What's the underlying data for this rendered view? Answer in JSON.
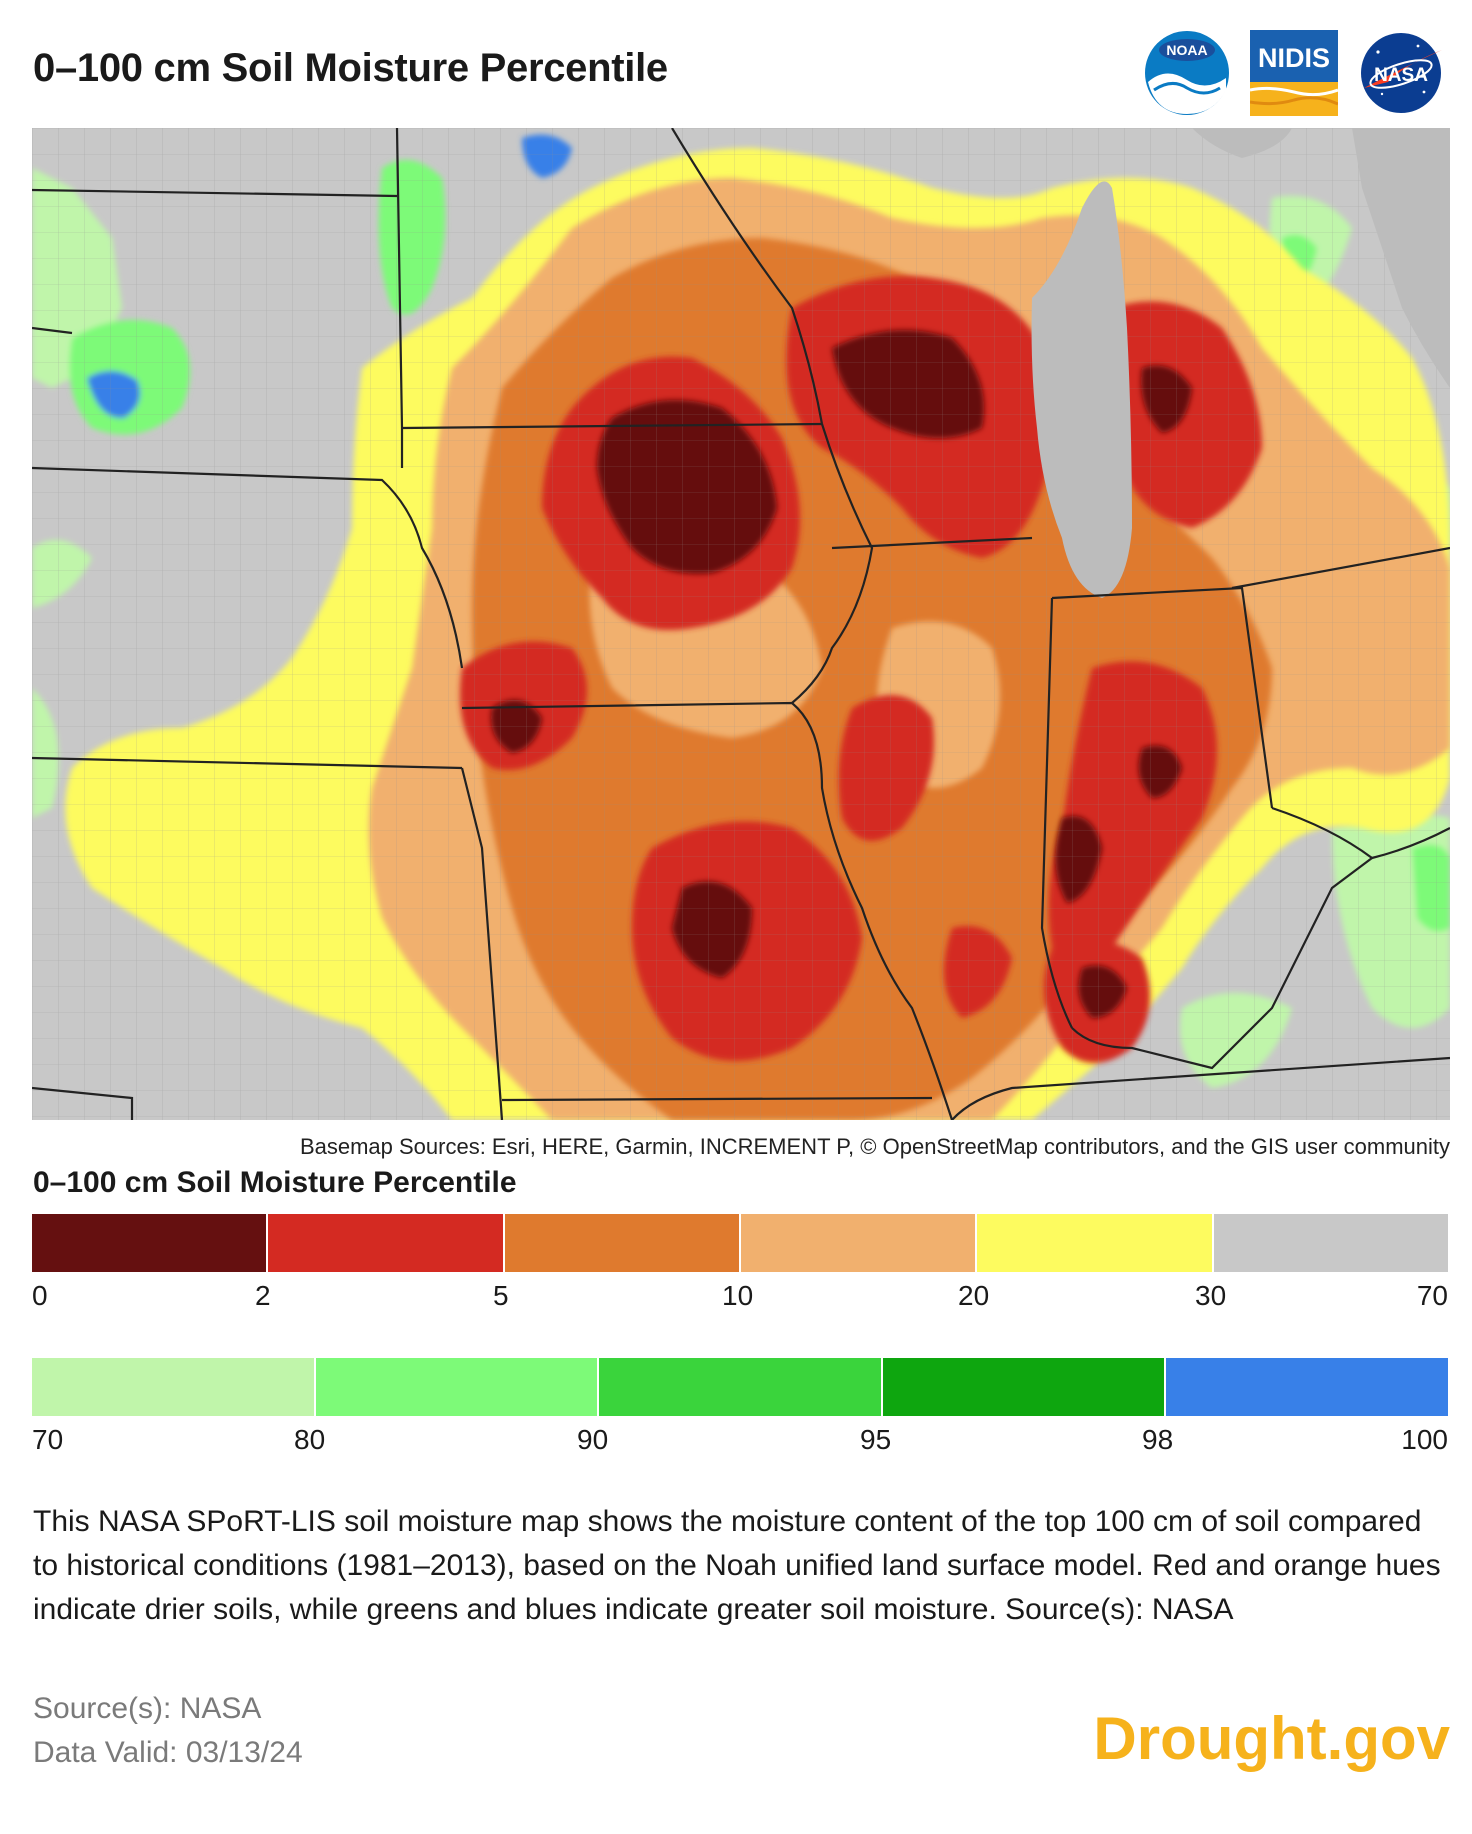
{
  "header": {
    "title": "0–100 cm Soil Moisture Percentile"
  },
  "logos": {
    "noaa": "NOAA",
    "nidis": "NIDIS",
    "nasa": "NASA"
  },
  "map": {
    "palette": {
      "extreme_dry": "#651010",
      "very_dry": "#d42a22",
      "dry": "#df7a2e",
      "moderately_dry": "#f1b06e",
      "slightly_dry": "#fdfb5f",
      "normal": "#c8c8c8",
      "moist": "#c0f5aa",
      "wet": "#7dfa78",
      "very_wet": "#3ad43c",
      "wettest": "#0ea60f",
      "saturated": "#3880e8",
      "water": "#bcbcbc",
      "borders": "#222222"
    },
    "basemap_credit": "Basemap Sources: Esri, HERE, Garmin, INCREMENT P, © OpenStreetMap contributors, and the GIS user community"
  },
  "legend": {
    "title": "0–100 cm Soil Moisture Percentile",
    "scale1": {
      "colors": [
        "#651010",
        "#d42a22",
        "#df7a2e",
        "#f1b06e",
        "#fdfb5f",
        "#c8c8c8"
      ],
      "ticks": [
        "0",
        "2",
        "5",
        "10",
        "20",
        "30",
        "70"
      ]
    },
    "scale2": {
      "colors": [
        "#c0f5aa",
        "#7dfa78",
        "#3ad43c",
        "#0ea60f",
        "#3880e8"
      ],
      "ticks": [
        "70",
        "80",
        "90",
        "95",
        "98",
        "100"
      ]
    }
  },
  "description": "This NASA SPoRT-LIS soil moisture map shows the moisture content of the top 100 cm of soil compared to historical conditions (1981–2013), based on the Noah unified land surface model. Red and orange hues indicate drier soils, while greens and blues indicate greater soil moisture. Source(s): NASA",
  "footer": {
    "source": "Source(s): NASA",
    "data_valid": "Data Valid: 03/13/24",
    "brand": "Drought.gov"
  }
}
